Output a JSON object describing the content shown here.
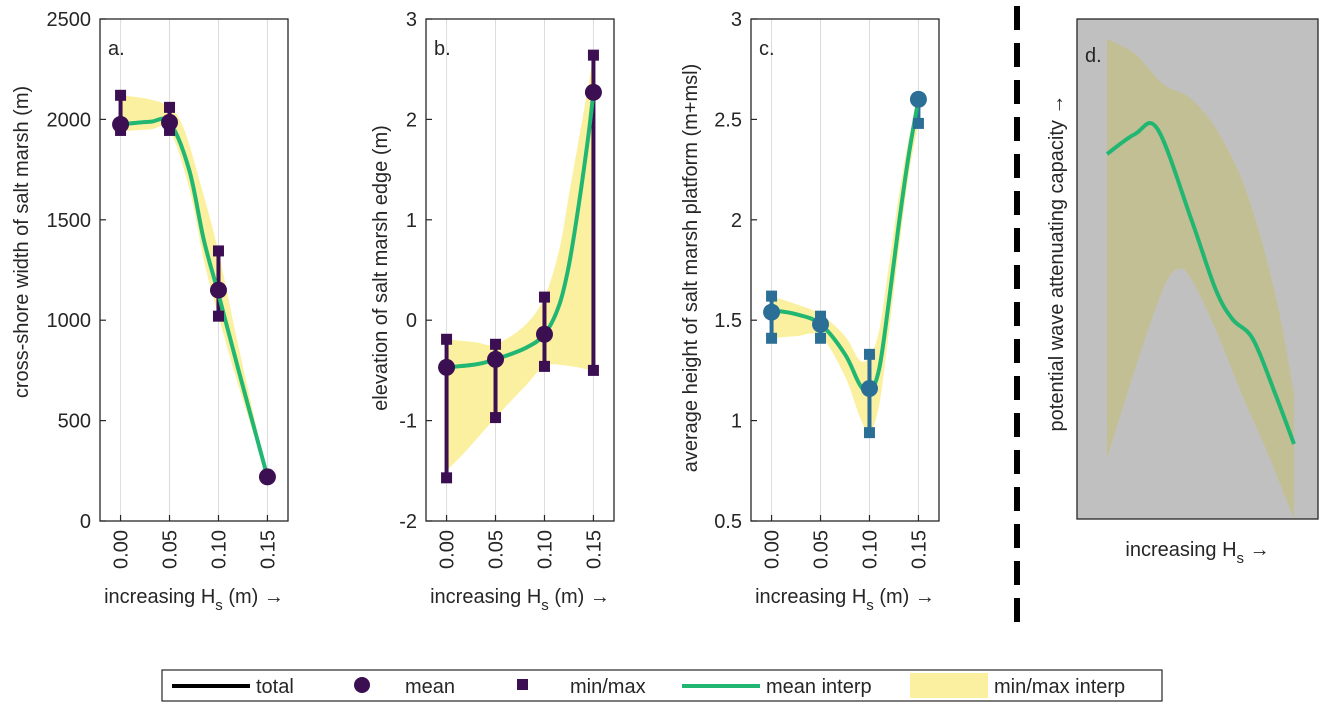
{
  "colors": {
    "mean_purple": "#3b0f52",
    "mean_blue": "#2c6f96",
    "interp_green": "#21b772",
    "band_yellow": "#fbf0a0",
    "grid": "#dcdcdc",
    "panel_d_background": "#c0c0c0",
    "panel_d_band": "#c3bf94",
    "axis": "#262626"
  },
  "xticks": [
    "0.00",
    "0.05",
    "0.10",
    "0.15"
  ],
  "chart_data": [
    {
      "type": "line",
      "panel_label": "a.",
      "ylabel": "cross-shore width of salt marsh (m)",
      "xlabel_pre": "increasing H",
      "xlabel_sub": "s",
      "xlabel_post": " (m) →",
      "ylim": [
        0,
        2500
      ],
      "yticks": [
        "0",
        "500",
        "1000",
        "1500",
        "2000",
        "2500"
      ],
      "ytick_values": [
        0,
        500,
        1000,
        1500,
        2000,
        2500
      ],
      "grid": true,
      "marker_color": "mean_purple",
      "x": [
        0.0,
        0.05,
        0.1,
        0.15
      ],
      "mean": [
        1975,
        1985,
        1150,
        220
      ],
      "min": [
        1945,
        1945,
        1020,
        220
      ],
      "max": [
        2120,
        2060,
        1345,
        220
      ],
      "mean_interp": [
        [
          0.0,
          1975
        ],
        [
          0.03,
          1988
        ],
        [
          0.05,
          1985
        ],
        [
          0.07,
          1750
        ],
        [
          0.085,
          1400
        ],
        [
          0.1,
          1130
        ],
        [
          0.12,
          760
        ],
        [
          0.15,
          220
        ]
      ],
      "band_upper": [
        [
          0.0,
          2120
        ],
        [
          0.03,
          2100
        ],
        [
          0.05,
          2060
        ],
        [
          0.065,
          1950
        ],
        [
          0.085,
          1620
        ],
        [
          0.1,
          1340
        ],
        [
          0.12,
          880
        ],
        [
          0.15,
          220
        ]
      ],
      "band_lower": [
        [
          0.0,
          1940
        ],
        [
          0.03,
          1950
        ],
        [
          0.05,
          1945
        ],
        [
          0.07,
          1660
        ],
        [
          0.085,
          1300
        ],
        [
          0.1,
          1020
        ],
        [
          0.12,
          680
        ],
        [
          0.15,
          220
        ]
      ]
    },
    {
      "type": "line",
      "panel_label": "b.",
      "ylabel": "elevation of salt marsh edge (m)",
      "xlabel_pre": "increasing H",
      "xlabel_sub": "s",
      "xlabel_post": " (m) →",
      "ylim": [
        -2,
        3
      ],
      "yticks": [
        "-2",
        "-1",
        "0",
        "1",
        "2",
        "3"
      ],
      "ytick_values": [
        -2,
        -1,
        0,
        1,
        2,
        3
      ],
      "grid": true,
      "marker_color": "mean_purple",
      "x": [
        0.0,
        0.05,
        0.1,
        0.15
      ],
      "mean": [
        -0.47,
        -0.39,
        -0.14,
        2.27
      ],
      "min": [
        -1.57,
        -0.97,
        -0.46,
        -0.5
      ],
      "max": [
        -0.19,
        -0.24,
        0.23,
        2.64
      ],
      "mean_interp": [
        [
          0.0,
          -0.47
        ],
        [
          0.03,
          -0.44
        ],
        [
          0.05,
          -0.39
        ],
        [
          0.08,
          -0.28
        ],
        [
          0.1,
          -0.14
        ],
        [
          0.115,
          0.15
        ],
        [
          0.125,
          0.55
        ],
        [
          0.135,
          1.15
        ],
        [
          0.145,
          1.85
        ],
        [
          0.15,
          2.27
        ]
      ],
      "band_upper": [
        [
          0.0,
          -0.19
        ],
        [
          0.03,
          -0.22
        ],
        [
          0.05,
          -0.24
        ],
        [
          0.08,
          -0.05
        ],
        [
          0.1,
          0.23
        ],
        [
          0.115,
          0.7
        ],
        [
          0.125,
          1.25
        ],
        [
          0.135,
          1.8
        ],
        [
          0.145,
          2.35
        ],
        [
          0.15,
          2.64
        ]
      ],
      "band_lower": [
        [
          0.0,
          -1.5
        ],
        [
          0.02,
          -1.3
        ],
        [
          0.05,
          -0.97
        ],
        [
          0.08,
          -0.66
        ],
        [
          0.1,
          -0.46
        ],
        [
          0.12,
          -0.45
        ],
        [
          0.15,
          -0.5
        ]
      ]
    },
    {
      "type": "line",
      "panel_label": "c.",
      "ylabel": "average height of salt marsh platform (m+msl)",
      "xlabel_pre": "increasing H",
      "xlabel_sub": "s",
      "xlabel_post": " (m) →",
      "ylim": [
        0.5,
        3
      ],
      "yticks": [
        "0.5",
        "1",
        "1.5",
        "2",
        "2.5",
        "3"
      ],
      "ytick_values": [
        0.5,
        1,
        1.5,
        2,
        2.5,
        3
      ],
      "grid": true,
      "marker_color": "mean_blue",
      "x": [
        0.0,
        0.05,
        0.1,
        0.15
      ],
      "mean": [
        1.54,
        1.48,
        1.16,
        2.6
      ],
      "min": [
        1.41,
        1.41,
        0.94,
        2.48
      ],
      "max": [
        1.62,
        1.52,
        1.33,
        2.6
      ],
      "mean_interp": [
        [
          0.0,
          1.55
        ],
        [
          0.025,
          1.53
        ],
        [
          0.05,
          1.48
        ],
        [
          0.075,
          1.33
        ],
        [
          0.09,
          1.18
        ],
        [
          0.1,
          1.14
        ],
        [
          0.11,
          1.26
        ],
        [
          0.12,
          1.6
        ],
        [
          0.13,
          1.98
        ],
        [
          0.14,
          2.32
        ],
        [
          0.15,
          2.6
        ]
      ],
      "band_upper": [
        [
          0.0,
          1.62
        ],
        [
          0.025,
          1.58
        ],
        [
          0.05,
          1.53
        ],
        [
          0.075,
          1.42
        ],
        [
          0.09,
          1.3
        ],
        [
          0.1,
          1.32
        ],
        [
          0.11,
          1.45
        ],
        [
          0.12,
          1.78
        ],
        [
          0.13,
          2.12
        ],
        [
          0.14,
          2.4
        ],
        [
          0.15,
          2.6
        ]
      ],
      "band_lower": [
        [
          0.0,
          1.41
        ],
        [
          0.025,
          1.42
        ],
        [
          0.05,
          1.42
        ],
        [
          0.075,
          1.22
        ],
        [
          0.09,
          1.02
        ],
        [
          0.1,
          0.94
        ],
        [
          0.11,
          1.08
        ],
        [
          0.12,
          1.45
        ],
        [
          0.13,
          1.85
        ],
        [
          0.14,
          2.22
        ],
        [
          0.15,
          2.48
        ]
      ]
    },
    {
      "type": "area",
      "panel_label": "d.",
      "ylabel": "potential wave attenuating capacity →",
      "xlabel_pre": "increasing H",
      "xlabel_sub": "s",
      "xlabel_post": " →",
      "xlim": [
        0,
        1
      ],
      "ylim": [
        0,
        1
      ],
      "mean_interp": [
        [
          0.0,
          0.73
        ],
        [
          0.15,
          0.77
        ],
        [
          0.27,
          0.78
        ],
        [
          0.45,
          0.6
        ],
        [
          0.58,
          0.46
        ],
        [
          0.67,
          0.4
        ],
        [
          0.78,
          0.36
        ],
        [
          0.9,
          0.25
        ],
        [
          1.0,
          0.15
        ]
      ],
      "band_upper": [
        [
          0.0,
          0.96
        ],
        [
          0.15,
          0.93
        ],
        [
          0.3,
          0.87
        ],
        [
          0.45,
          0.84
        ],
        [
          0.6,
          0.77
        ],
        [
          0.75,
          0.65
        ],
        [
          0.9,
          0.45
        ],
        [
          1.0,
          0.25
        ]
      ],
      "band_lower": [
        [
          0.0,
          0.12
        ],
        [
          0.15,
          0.3
        ],
        [
          0.3,
          0.46
        ],
        [
          0.38,
          0.5
        ],
        [
          0.45,
          0.48
        ],
        [
          0.58,
          0.38
        ],
        [
          0.72,
          0.25
        ],
        [
          0.85,
          0.14
        ],
        [
          1.0,
          0.0
        ]
      ]
    }
  ],
  "legend": {
    "items": [
      {
        "key": "total",
        "label": "total",
        "symbol": "line-black"
      },
      {
        "key": "mean",
        "label": "mean",
        "symbol": "circle"
      },
      {
        "key": "minmax",
        "label": "min/max",
        "symbol": "square"
      },
      {
        "key": "mean_interp",
        "label": "mean interp",
        "symbol": "line-green"
      },
      {
        "key": "minmax_interp",
        "label": "min/max interp",
        "symbol": "patch-yellow"
      }
    ]
  }
}
